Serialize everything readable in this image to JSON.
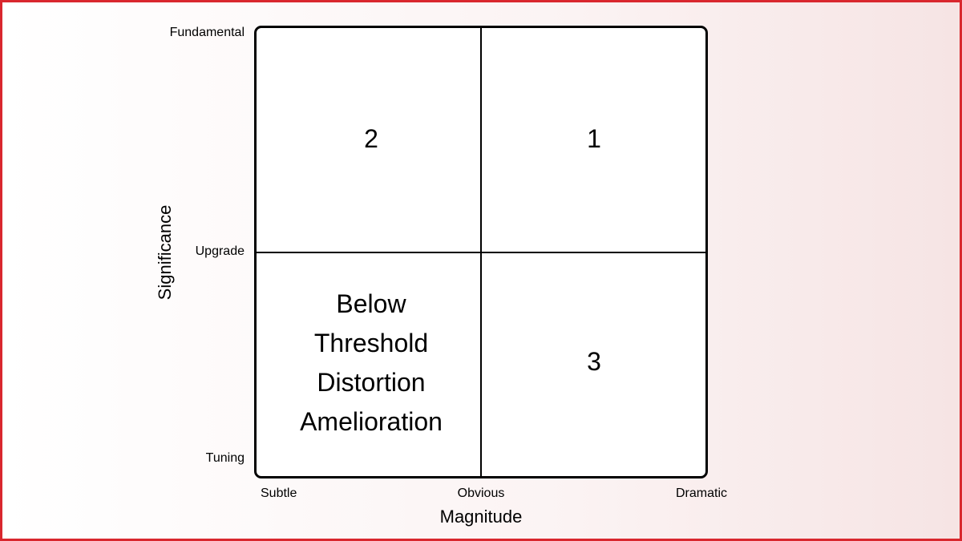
{
  "diagram": {
    "quadrants": {
      "top_left": "2",
      "top_right": "1",
      "bottom_left": [
        "Below",
        "Threshold",
        "Distortion",
        "Amelioration"
      ],
      "bottom_right": "3"
    },
    "y_axis": {
      "title": "Significance",
      "ticks": {
        "top": "Fundamental",
        "middle": "Upgrade",
        "bottom": "Tuning"
      }
    },
    "x_axis": {
      "title": "Magnitude",
      "ticks": {
        "left": "Subtle",
        "middle": "Obvious",
        "right": "Dramatic"
      }
    },
    "colors": {
      "border": "#d9272e",
      "lines": "#000000"
    }
  }
}
